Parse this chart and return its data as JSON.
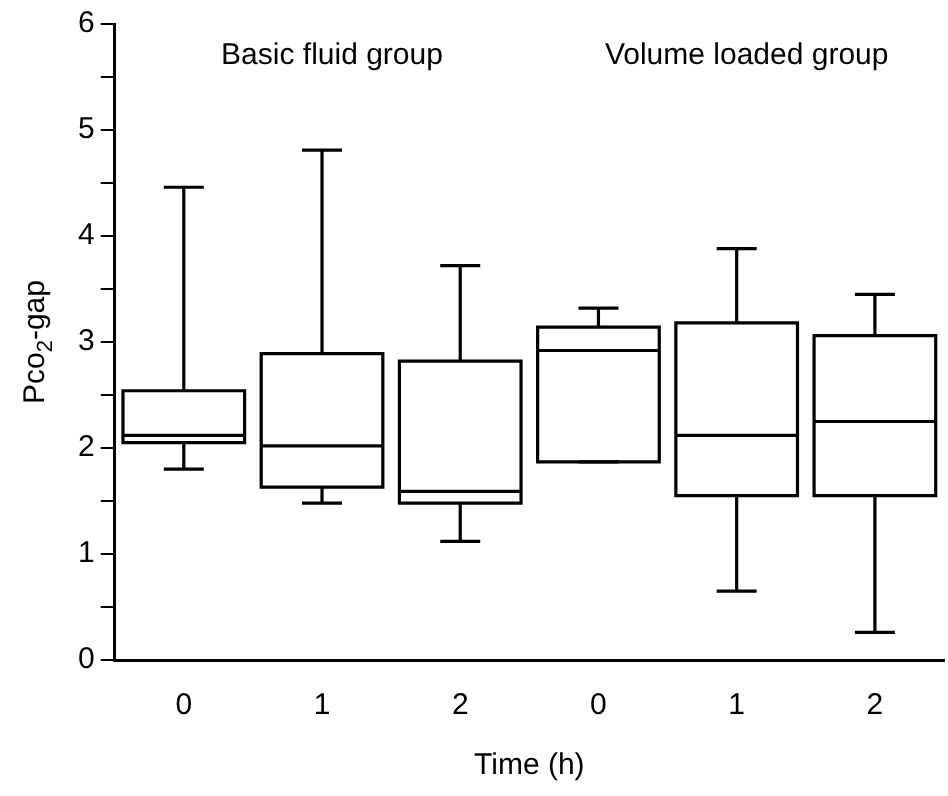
{
  "chart_data": {
    "type": "box",
    "categories": [
      "0",
      "1",
      "2",
      "0",
      "1",
      "2"
    ],
    "xlabel": "Time (h)",
    "ylabel": "Pco$_{2}$-gap",
    "annotations": [
      "Basic fluid group",
      "Volume loaded group"
    ],
    "color": "#000000",
    "boxes": [
      {
        "low": 1.8,
        "q1": 2.05,
        "median": 2.12,
        "q3": 2.54,
        "high": 4.46
      },
      {
        "low": 1.48,
        "q1": 1.63,
        "median": 2.02,
        "q3": 2.89,
        "high": 4.81
      },
      {
        "low": 1.12,
        "q1": 1.48,
        "median": 1.59,
        "q3": 2.82,
        "high": 3.72
      },
      {
        "low": 1.87,
        "q1": 1.87,
        "median": 2.92,
        "q3": 3.14,
        "high": 3.32
      },
      {
        "low": 0.65,
        "q1": 1.55,
        "median": 2.12,
        "q3": 3.18,
        "high": 3.88
      },
      {
        "low": 0.26,
        "q1": 1.55,
        "median": 2.25,
        "q3": 3.06,
        "high": 3.45
      }
    ],
    "ylim": [
      0,
      6
    ],
    "yticks": [
      0,
      {
        "value": 0.5,
        "label": null
      },
      1,
      {
        "value": 1.5,
        "label": null
      },
      2,
      {
        "value": 2.5,
        "label": null
      },
      3,
      {
        "value": 3.5,
        "label": null
      },
      4,
      {
        "value": 4.5,
        "label": null
      },
      5,
      {
        "value": 5.5,
        "label": null
      },
      6
    ],
    "grid": false,
    "legend": false
  }
}
